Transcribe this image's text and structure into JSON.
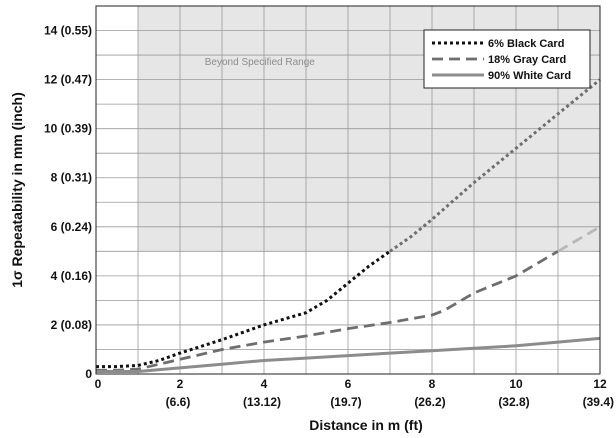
{
  "chart_data": {
    "type": "line",
    "xlabel": "Distance in m (ft)",
    "ylabel": "1σ Repeatability in mm (inch)",
    "xlim": [
      0,
      12
    ],
    "ylim": [
      0,
      15
    ],
    "x_ticks": [
      {
        "value": 0,
        "label": "0",
        "sublabel": ""
      },
      {
        "value": 2,
        "label": "2",
        "sublabel": "(6.6)"
      },
      {
        "value": 4,
        "label": "4",
        "sublabel": "(13.12)"
      },
      {
        "value": 6,
        "label": "6",
        "sublabel": "(19.7)"
      },
      {
        "value": 8,
        "label": "8",
        "sublabel": "(26.2)"
      },
      {
        "value": 10,
        "label": "10",
        "sublabel": "(32.8)"
      },
      {
        "value": 12,
        "label": "12",
        "sublabel": "(39.4)"
      }
    ],
    "y_ticks": [
      {
        "value": 0,
        "label": "0"
      },
      {
        "value": 2,
        "label": "2 (0.08)"
      },
      {
        "value": 4,
        "label": "4 (0.16)"
      },
      {
        "value": 6,
        "label": "6 (0.24)"
      },
      {
        "value": 8,
        "label": "8 (0.31)"
      },
      {
        "value": 10,
        "label": "10 (0.39)"
      },
      {
        "value": 12,
        "label": "12 (0.47)"
      },
      {
        "value": 14,
        "label": "14 (0.55)"
      }
    ],
    "grid": true,
    "shaded_region": {
      "label": "Beyond Specified Range",
      "x_range": [
        1,
        12
      ],
      "y_from": 5,
      "fill": "#e6e6e6"
    },
    "legend_position": "top-right",
    "series": [
      {
        "name": "6% Black Card",
        "style": "dotted",
        "color": "#111111",
        "beyond_color": "#6e6e6e",
        "x": [
          0,
          0.5,
          1,
          1.5,
          2,
          3,
          4,
          5,
          5.5,
          6,
          6.5,
          7,
          7.5,
          8,
          9,
          10,
          11,
          12
        ],
        "y": [
          0.3,
          0.3,
          0.35,
          0.55,
          0.85,
          1.4,
          2.0,
          2.5,
          3.0,
          3.7,
          4.4,
          5.0,
          5.6,
          6.3,
          7.8,
          9.2,
          10.6,
          12.0
        ]
      },
      {
        "name": "18% Gray Card",
        "style": "dashed",
        "color": "#6e6e6e",
        "beyond_color": "#b8b8b8",
        "x": [
          0,
          0.5,
          1,
          2,
          3,
          4,
          5,
          6,
          7,
          8,
          8.3,
          9,
          10,
          11,
          12
        ],
        "y": [
          0.15,
          0.15,
          0.2,
          0.6,
          1.0,
          1.3,
          1.55,
          1.85,
          2.1,
          2.4,
          2.6,
          3.3,
          4.0,
          5.0,
          6.0
        ]
      },
      {
        "name": "90% White Card",
        "style": "solid",
        "color": "#8c8c8c",
        "beyond_color": "#8c8c8c",
        "x": [
          0,
          1,
          2,
          3,
          4,
          5,
          6,
          7,
          8,
          9,
          10,
          11,
          12
        ],
        "y": [
          0.1,
          0.1,
          0.25,
          0.4,
          0.55,
          0.65,
          0.75,
          0.85,
          0.95,
          1.05,
          1.15,
          1.3,
          1.45
        ]
      }
    ]
  }
}
